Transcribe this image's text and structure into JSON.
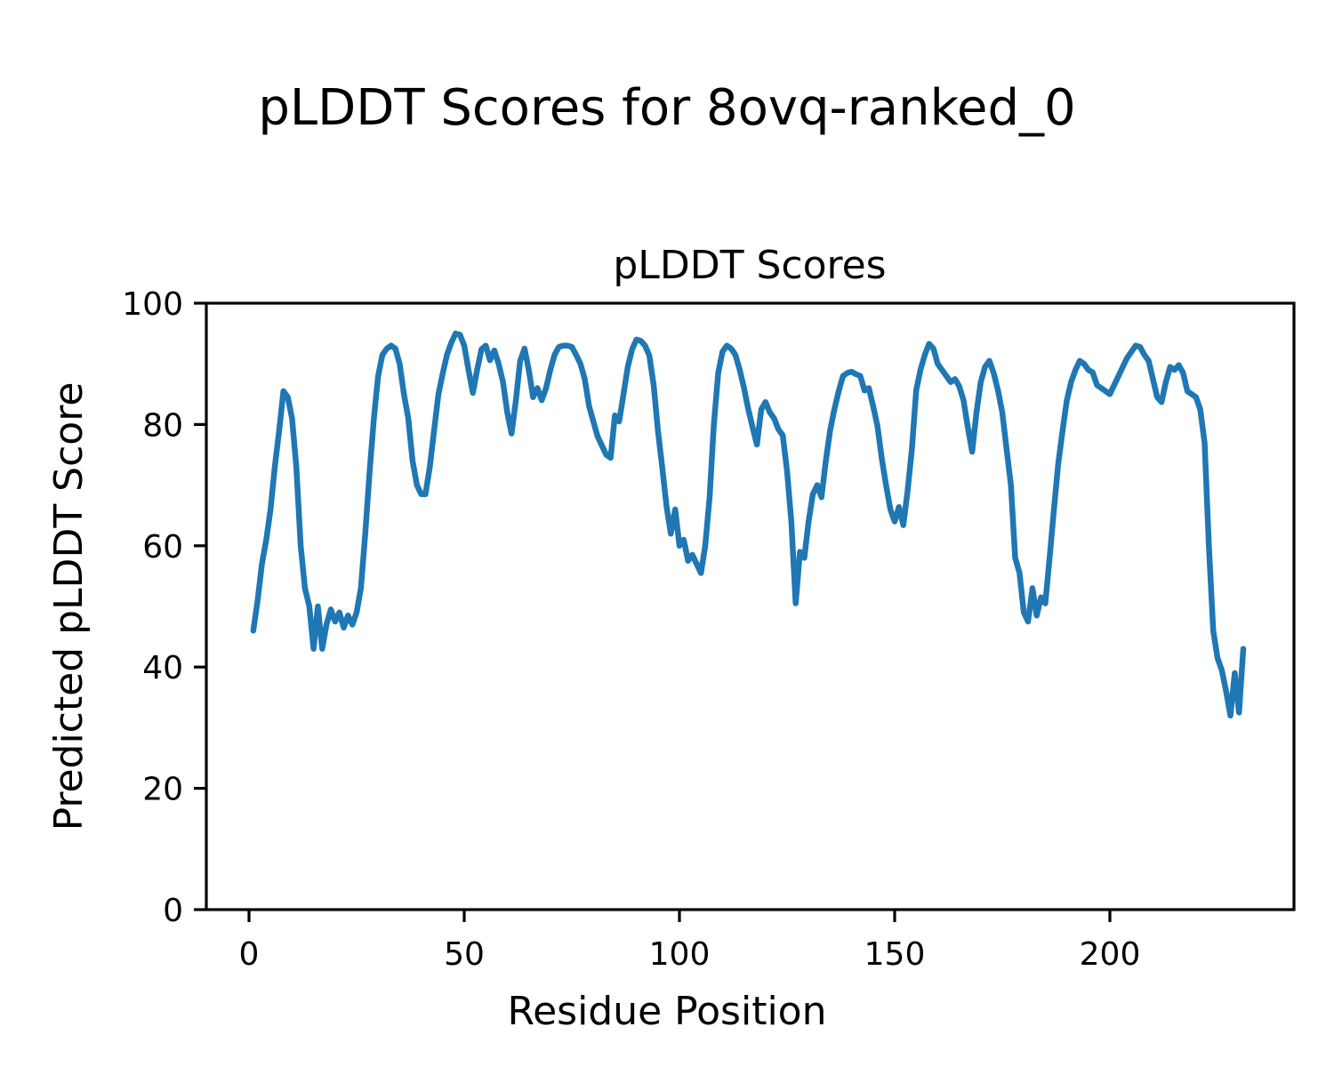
{
  "figure": {
    "suptitle": "pLDDT Scores for 8ovq-ranked_0"
  },
  "chart_data": {
    "type": "line",
    "title": "pLDDT Scores",
    "xlabel": "Residue Position",
    "ylabel": "Predicted pLDDT Score",
    "series_name": "pLDDT",
    "x_start": 1,
    "x_step": 1,
    "xlim": [
      -10,
      243
    ],
    "ylim": [
      0,
      100
    ],
    "xticks": [
      0,
      50,
      100,
      150,
      200
    ],
    "yticks": [
      0,
      20,
      40,
      60,
      80,
      100
    ],
    "grid": false,
    "legend_position": "none",
    "line_color": "#1f77b4",
    "values": [
      46,
      51,
      57,
      61,
      66,
      73,
      79,
      85.5,
      84.5,
      81,
      73,
      60,
      53,
      50,
      43,
      50,
      43,
      47,
      49.5,
      47.5,
      49,
      46.5,
      48.5,
      47,
      49,
      53,
      62,
      72,
      81,
      88,
      91.5,
      92.5,
      93,
      92.5,
      90,
      85,
      81,
      74,
      70,
      68.5,
      68.5,
      73,
      79,
      85,
      88.4,
      91.5,
      93.5,
      95,
      94.8,
      93,
      89,
      85.2,
      89,
      92.4,
      93,
      90.6,
      92.2,
      90,
      87,
      82,
      78.5,
      84,
      90.5,
      92.5,
      89,
      84.5,
      86,
      84,
      86,
      89,
      91.5,
      92.8,
      93,
      93,
      92.8,
      91.5,
      90,
      87.5,
      83,
      80.5,
      78,
      76.5,
      75,
      74.5,
      81.5,
      80.5,
      85,
      89.5,
      92.4,
      94,
      93.8,
      93,
      91.4,
      86.5,
      79,
      73,
      66.5,
      62,
      66,
      60,
      61,
      57.5,
      58.5,
      57,
      55.5,
      60,
      68,
      80,
      88.5,
      92,
      93,
      92.5,
      91.5,
      89,
      86,
      82.5,
      79.5,
      76.7,
      82.5,
      83.7,
      82,
      81,
      79.2,
      78.2,
      72.3,
      64,
      50.5,
      59,
      58,
      64,
      68.5,
      70,
      68,
      74,
      79,
      82.5,
      85.5,
      88,
      88.5,
      88.7,
      88.3,
      88,
      85.6,
      86,
      83,
      79.8,
      74.4,
      70,
      66,
      64,
      66.4,
      63.4,
      69,
      76,
      85.6,
      89,
      91.5,
      93.3,
      92.5,
      90,
      89,
      88,
      87,
      87.5,
      86.3,
      84,
      79.5,
      75.5,
      82,
      87,
      89.5,
      90.5,
      88.5,
      85.6,
      82,
      76,
      70,
      58,
      55.5,
      49,
      47.5,
      53,
      48.5,
      51.5,
      50.5,
      58,
      66,
      73.5,
      79,
      84,
      87,
      89,
      90.5,
      90,
      89,
      88.6,
      86.5,
      86,
      85.5,
      85,
      86.5,
      88,
      89.5,
      91,
      92,
      93,
      92.8,
      91.5,
      90.5,
      87.5,
      84.5,
      83.7,
      87,
      89.5,
      89,
      89.8,
      88.5,
      85.5,
      85,
      84.5,
      82.5,
      77,
      60,
      46,
      41.5,
      39.5,
      36,
      32,
      39,
      32.5,
      43
    ]
  }
}
